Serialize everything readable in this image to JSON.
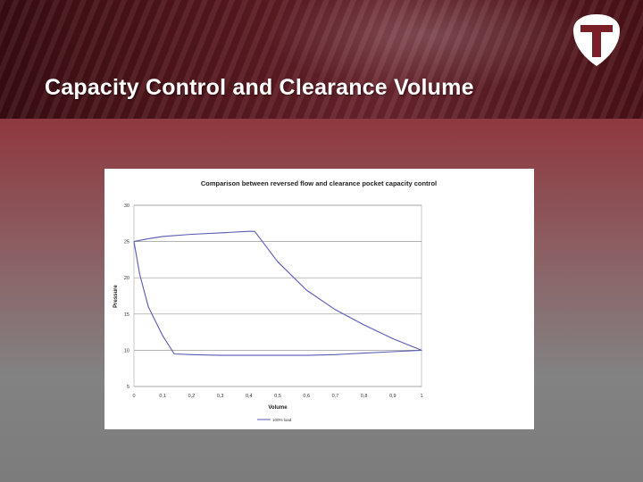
{
  "slide": {
    "title": "Capacity Control and Clearance Volume"
  },
  "logo": {
    "icon": "t-shield-logo-icon"
  },
  "colors": {
    "series": "#5a5ab4",
    "title_text": "#ffffff",
    "gridline": "#9a9a9a"
  },
  "chart_data": {
    "type": "line",
    "title": "Comparison between reversed flow and clearance pocket capacity control",
    "xlabel": "Volume",
    "ylabel": "Pressure",
    "xlim": [
      0,
      1
    ],
    "ylim": [
      5,
      30
    ],
    "x_ticks": [
      "0",
      "0,1",
      "0,2",
      "0,3",
      "0,4",
      "0,5",
      "0,6",
      "0,7",
      "0,8",
      "0,9",
      "1"
    ],
    "y_ticks": [
      "5",
      "10",
      "15",
      "20",
      "25",
      "30"
    ],
    "grid": "horizontal",
    "legend_position": "bottom",
    "series": [
      {
        "name": "100% load",
        "x": [
          0,
          0.05,
          0.1,
          0.2,
          0.3,
          0.4,
          0.42,
          0.5,
          0.6,
          0.7,
          0.8,
          0.9,
          1.0,
          0.9,
          0.8,
          0.7,
          0.6,
          0.5,
          0.4,
          0.3,
          0.2,
          0.14,
          0.1,
          0.05,
          0.02,
          0
        ],
        "y": [
          25,
          25.4,
          25.7,
          26,
          26.2,
          26.4,
          26.4,
          22.2,
          18.3,
          15.6,
          13.5,
          11.6,
          10.0,
          9.8,
          9.6,
          9.4,
          9.3,
          9.3,
          9.3,
          9.3,
          9.4,
          9.5,
          12.0,
          16.0,
          20.5,
          25
        ]
      }
    ]
  }
}
